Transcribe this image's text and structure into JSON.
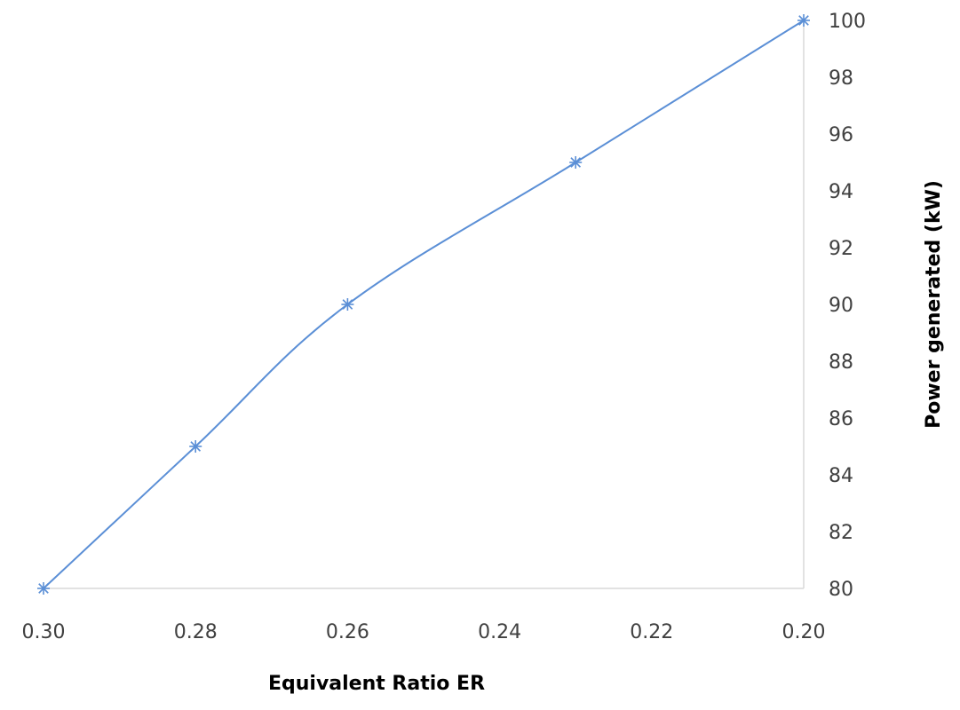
{
  "chart_data": {
    "type": "line",
    "title": "",
    "xlabel": "Equivalent Ratio ER",
    "ylabel": "Power generated (kW)",
    "x_reversed": true,
    "xlim": [
      0.3,
      0.2
    ],
    "ylim": [
      80,
      100
    ],
    "x_ticks": [
      "0.30",
      "0.28",
      "0.26",
      "0.24",
      "0.22",
      "0.20"
    ],
    "y_ticks": [
      "80",
      "82",
      "84",
      "86",
      "88",
      "90",
      "92",
      "94",
      "96",
      "98",
      "100"
    ],
    "y_axis_position": "right",
    "grid": false,
    "legend": "none",
    "smoothed": true,
    "marker": "asterisk",
    "colors": {
      "series": "#5b8fd6",
      "axis": "#d9d9d9"
    },
    "series": [
      {
        "x": [
          0.3,
          0.28,
          0.26,
          0.23,
          0.2
        ],
        "values": [
          80,
          85,
          90,
          95,
          100
        ]
      }
    ]
  }
}
